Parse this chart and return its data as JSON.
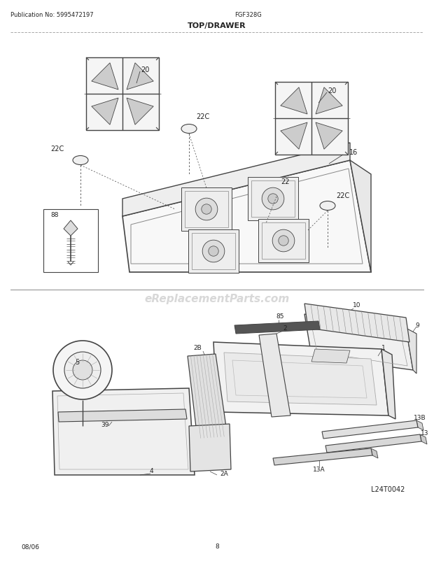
{
  "title": "TOP/DRAWER",
  "pub_no": "Publication No: 5995472197",
  "model": "FGF328G",
  "date": "08/06",
  "page": "8",
  "watermark": "eReplacementParts.com",
  "watermark_color": "#c8c8c8",
  "bg_color": "#ffffff",
  "line_color": "#444444",
  "text_color": "#222222"
}
